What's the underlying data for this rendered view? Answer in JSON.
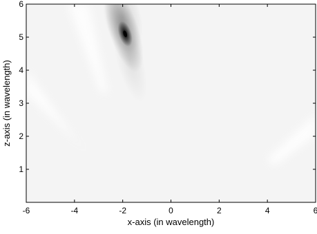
{
  "chart_data": {
    "type": "heatmap",
    "title": "",
    "xlabel": "x-axis (in wavelength)",
    "ylabel": "z-axis (in wavelength)",
    "xlim": [
      -6,
      6
    ],
    "ylim": [
      0,
      6
    ],
    "x_ticks": [
      -6,
      -4,
      -2,
      0,
      2,
      4,
      6
    ],
    "y_ticks": [
      1,
      2,
      3,
      4,
      5,
      6
    ],
    "x_tick_labels": [
      "-6",
      "-4",
      "-2",
      "0",
      "2",
      "4",
      "6"
    ],
    "y_tick_labels": [
      "1",
      "2",
      "3",
      "4",
      "5",
      "6"
    ],
    "colormap": "gray (white = low, black = high)",
    "background_color": "#f4f4f4",
    "peak": {
      "x": -1.9,
      "z": 5.1,
      "value": 1.0
    },
    "blobs": [
      {
        "x": -1.9,
        "z": 5.1,
        "sx": 0.12,
        "sz": 0.18,
        "tilt_deg": -18,
        "intensity": 1.0
      },
      {
        "x": -1.95,
        "z": 5.2,
        "sx": 0.28,
        "sz": 0.6,
        "tilt_deg": -18,
        "intensity": 0.35
      },
      {
        "x": -2.0,
        "z": 5.6,
        "sx": 0.35,
        "sz": 0.5,
        "tilt_deg": -15,
        "intensity": 0.15
      },
      {
        "x": -1.7,
        "z": 4.3,
        "sx": 0.25,
        "sz": 0.6,
        "tilt_deg": -15,
        "intensity": 0.08
      }
    ],
    "grid": false,
    "box": true
  }
}
